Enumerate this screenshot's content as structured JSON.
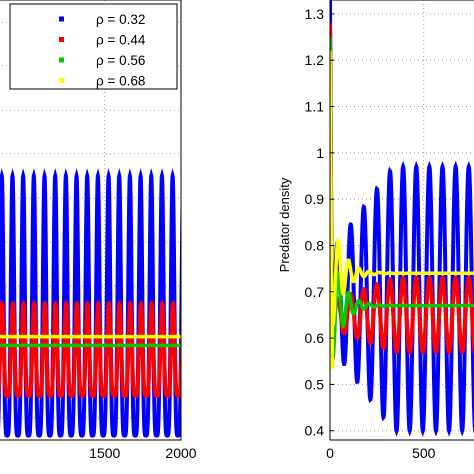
{
  "chart_data": [
    {
      "type": "line",
      "title": "",
      "xlabel": "",
      "ylabel": "",
      "x_ticks": [
        "1500",
        "2000"
      ],
      "xlim": [
        800,
        2000
      ],
      "ylim": [
        0.35,
        1.35
      ],
      "grid": "dotted",
      "legend_position": "top-right",
      "series": [
        {
          "name": "ρ = 0.32",
          "color": "#0000ff",
          "period": 70,
          "min": 0.36,
          "max": 0.95
        },
        {
          "name": "ρ = 0.44",
          "color": "#ff0000",
          "period": 70,
          "min": 0.45,
          "max": 0.66
        },
        {
          "name": "ρ = 0.56",
          "color": "#00cc00",
          "level": 0.565
        },
        {
          "name": "ρ = 0.68",
          "color": "#ffff00",
          "level": 0.585
        }
      ]
    },
    {
      "type": "line",
      "title": "",
      "xlabel": "",
      "ylabel": "Predator density",
      "x_ticks": [
        "0",
        "500"
      ],
      "y_ticks": [
        "0.4",
        "0.5",
        "0.6",
        "0.7",
        "0.8",
        "0.9",
        "1",
        "1.1",
        "1.2",
        "1.3"
      ],
      "xlim": [
        0,
        800
      ],
      "ylim": [
        0.38,
        1.33
      ],
      "grid": "dotted",
      "series": [
        {
          "name": "ρ = 0.32",
          "color": "#0000ff",
          "start": 1.33,
          "period": 70,
          "min": 0.4,
          "max": 0.97
        },
        {
          "name": "ρ = 0.44",
          "color": "#ff0000",
          "start": 1.28,
          "period": 70,
          "min": 0.57,
          "max": 0.73
        },
        {
          "name": "ρ = 0.56",
          "color": "#00cc00",
          "start": 1.25,
          "settle": 0.67
        },
        {
          "name": "ρ = 0.68",
          "color": "#ffff00",
          "start": 1.22,
          "settle": 0.74
        }
      ]
    }
  ]
}
